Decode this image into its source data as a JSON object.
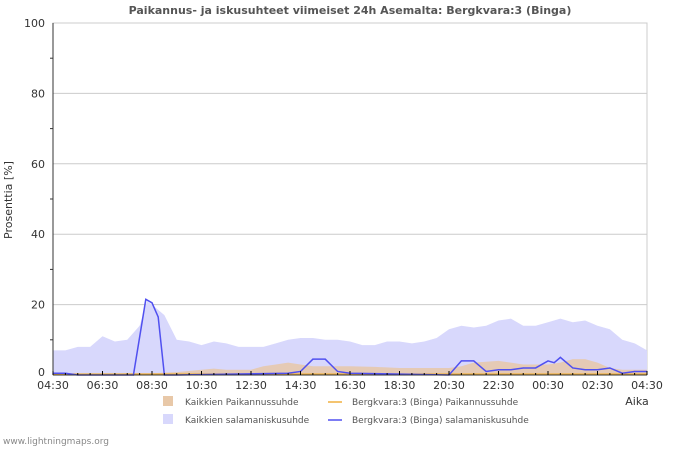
{
  "chart_data": {
    "type": "area",
    "title": "Paikannus- ja iskusuhteet viimeiset 24h Asemalta: Bergkvara:3 (Binga)",
    "ylabel": "Prosenttia   [%]",
    "xlabel": "Aika",
    "ylim": [
      0,
      100
    ],
    "yticks": [
      0,
      20,
      40,
      60,
      80,
      100
    ],
    "xticks": [
      "04:30",
      "06:30",
      "08:30",
      "10:30",
      "12:30",
      "14:30",
      "16:30",
      "18:30",
      "20:30",
      "22:30",
      "00:30",
      "02:30",
      "04:30"
    ],
    "x_unit": "hours since 04:30",
    "grid": true,
    "legend_position": "bottom",
    "series": [
      {
        "name": "Kaikkien salamaniskusuhde",
        "kind": "area",
        "color": "#d8d8fc",
        "x": [
          0,
          0.5,
          1,
          1.5,
          2,
          2.5,
          3,
          3.5,
          3.8,
          4,
          4.5,
          5,
          5.5,
          6,
          6.5,
          7,
          7.5,
          8,
          8.5,
          9,
          9.5,
          10,
          10.5,
          11,
          11.5,
          12,
          12.5,
          13,
          13.5,
          14,
          14.5,
          15,
          15.5,
          16,
          16.5,
          17,
          17.5,
          18,
          18.5,
          19,
          19.5,
          20,
          20.5,
          21,
          21.5,
          22,
          22.5,
          23,
          23.5,
          24
        ],
        "y": [
          7,
          7,
          8,
          8,
          11,
          9.5,
          10,
          14,
          21,
          20,
          17,
          10,
          9.5,
          8.5,
          9.5,
          9,
          8,
          8,
          8,
          9,
          10,
          10.5,
          10.5,
          10,
          10,
          9.5,
          8.5,
          8.5,
          9.5,
          9.5,
          9,
          9.5,
          10.5,
          13,
          14,
          13.5,
          14,
          15.5,
          16,
          14,
          14,
          15,
          16,
          15,
          15.5,
          14,
          13,
          10,
          9,
          7
        ]
      },
      {
        "name": "Kaikkien Paikannussuhde",
        "kind": "area",
        "color": "#e8c8a8",
        "x": [
          0,
          1,
          2,
          3,
          4,
          5,
          6,
          6.5,
          7,
          8,
          8.5,
          9,
          9.5,
          10,
          10.5,
          11,
          12,
          13,
          14,
          15,
          16,
          16.5,
          17,
          18,
          18.5,
          19,
          20,
          20.5,
          21,
          21.5,
          22,
          22.5,
          23,
          24
        ],
        "y": [
          0.3,
          0.3,
          0.3,
          0.5,
          0.5,
          0.8,
          1.5,
          1.8,
          1.5,
          1.5,
          2.5,
          3,
          3.5,
          3,
          2.5,
          2.5,
          2.5,
          2.3,
          2,
          2,
          2,
          2.5,
          3.5,
          4,
          3.5,
          3,
          3,
          3.5,
          4.5,
          4.5,
          3.5,
          2,
          1.5,
          1.5
        ]
      },
      {
        "name": "Bergkvara:3 (Binga) Paikannussuhde",
        "kind": "line",
        "color": "#f0b040",
        "x": [
          0,
          24
        ],
        "y": [
          0.3,
          0.3
        ]
      },
      {
        "name": "Bergkvara:3 (Binga) salamaniskusuhde",
        "kind": "line",
        "color": "#5050f0",
        "x": [
          0,
          0.5,
          1,
          3,
          3.25,
          3.75,
          4,
          4.25,
          4.5,
          5,
          9.5,
          10,
          10.5,
          11,
          11.5,
          12,
          16,
          16.5,
          17,
          17.5,
          18,
          18.5,
          19,
          19.5,
          19.75,
          20,
          20.25,
          20.5,
          21,
          21.5,
          22,
          22.5,
          23,
          23.5,
          24
        ],
        "y": [
          0.5,
          0.5,
          0,
          0,
          0,
          21.5,
          20.5,
          16.5,
          0,
          0,
          0.5,
          1,
          4.5,
          4.5,
          1,
          0.5,
          0,
          4,
          4,
          1,
          1.5,
          1.5,
          2,
          2,
          3,
          4,
          3.5,
          5,
          2,
          1.5,
          1.5,
          2,
          0.5,
          1,
          1
        ]
      }
    ]
  },
  "footer": "www.lightningmaps.org"
}
